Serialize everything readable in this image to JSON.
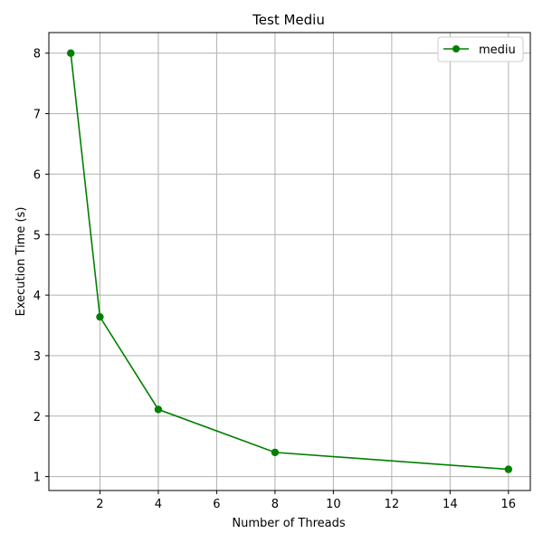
{
  "chart_data": {
    "type": "line",
    "title": "Test Mediu",
    "xlabel": "Number of Threads",
    "ylabel": "Execution Time (s)",
    "xlim": [
      0.25,
      16.75
    ],
    "ylim": [
      0.77,
      8.34
    ],
    "xticks": [
      2,
      4,
      6,
      8,
      10,
      12,
      14,
      16
    ],
    "yticks": [
      1,
      2,
      3,
      4,
      5,
      6,
      7,
      8
    ],
    "grid": true,
    "legend_position": "top-right",
    "series": [
      {
        "name": "mediu",
        "color": "#008000",
        "marker": "circle",
        "x": [
          1,
          2,
          4,
          8,
          16
        ],
        "y": [
          8.0,
          3.64,
          2.11,
          1.4,
          1.12
        ]
      }
    ]
  }
}
